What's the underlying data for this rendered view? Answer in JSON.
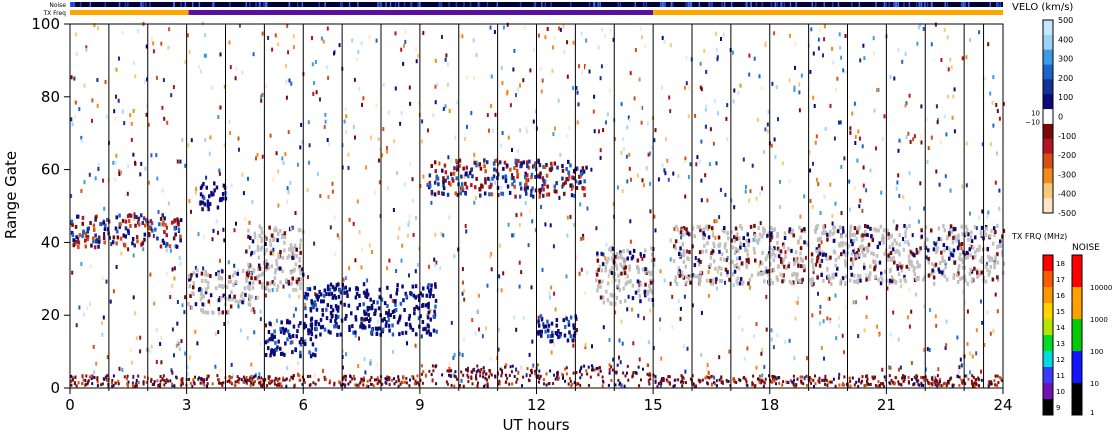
{
  "chart_data": {
    "type": "heatmap",
    "xlabel": "UT hours",
    "ylabel": "Range Gate",
    "xlim": [
      0,
      24
    ],
    "ylim": [
      0,
      100
    ],
    "xticks": [
      0,
      3,
      6,
      9,
      12,
      15,
      18,
      21,
      24
    ],
    "yticks": [
      0,
      20,
      40,
      60,
      80,
      100
    ],
    "scan_boundaries_hours": [
      1.0,
      2.0,
      3.0,
      4.0,
      5.0,
      6.0,
      7.0,
      8.0,
      9.0,
      10.0,
      11.0,
      12.0,
      13.0,
      14.0,
      15.0,
      16.0,
      17.0,
      18.0,
      19.0,
      20.0,
      21.0,
      22.0,
      23.0,
      23.5
    ],
    "top_bars": {
      "noise_label": "Noise",
      "txfreq_label": "TX Freq",
      "tx_freq_segments": [
        {
          "start": 0,
          "end": 3.05,
          "color": "#ffa500"
        },
        {
          "start": 3.05,
          "end": 15.0,
          "color": "#5b0f9e"
        },
        {
          "start": 15.0,
          "end": 24,
          "color": "#ffa500"
        }
      ]
    },
    "features": [
      {
        "name": "backscatter",
        "x": [
          0.0,
          2.9
        ],
        "y": [
          38,
          47
        ],
        "kind": "mixed"
      },
      {
        "name": "backscatter",
        "x": [
          3.0,
          4.7
        ],
        "y": [
          20,
          32
        ],
        "kind": "ground"
      },
      {
        "name": "backscatter",
        "x": [
          3.3,
          4.0
        ],
        "y": [
          48,
          56
        ],
        "kind": "neg"
      },
      {
        "name": "backscatter",
        "x": [
          4.5,
          6.0
        ],
        "y": [
          26,
          44
        ],
        "kind": "ground"
      },
      {
        "name": "backscatter",
        "x": [
          5.0,
          6.3
        ],
        "y": [
          8,
          18
        ],
        "kind": "neg"
      },
      {
        "name": "backscatter",
        "x": [
          6.0,
          9.4
        ],
        "y": [
          14,
          28
        ],
        "kind": "neg"
      },
      {
        "name": "backscatter",
        "x": [
          9.2,
          13.3
        ],
        "y": [
          52,
          62
        ],
        "kind": "mixed"
      },
      {
        "name": "backscatter",
        "x": [
          12.0,
          13.0
        ],
        "y": [
          12,
          20
        ],
        "kind": "neg"
      },
      {
        "name": "backscatter",
        "x": [
          13.5,
          15.0
        ],
        "y": [
          22,
          38
        ],
        "kind": "ground"
      },
      {
        "name": "backscatter",
        "x": [
          15.5,
          24.0
        ],
        "y": [
          28,
          44
        ],
        "kind": "ground"
      }
    ],
    "velocity_colorbar": {
      "title": "VELO (km/s)",
      "ticks": [
        500,
        400,
        300,
        200,
        100,
        0,
        -100,
        -200,
        -300,
        -400,
        -500
      ],
      "small_labels": [
        "10",
        "−10"
      ],
      "colors_top_to_bottom": [
        "#c8e6ff",
        "#9cd2fa",
        "#3c9be6",
        "#1e64c8",
        "#143296",
        "#0a0a78",
        "#ffffff",
        "#780a0a",
        "#b4141e",
        "#d25014",
        "#f08c1e",
        "#fac878",
        "#ffe6c8"
      ]
    },
    "txfreq_colorbar": {
      "title": "TX FRQ (MHz)",
      "ticks": [
        18,
        17,
        16,
        15,
        14,
        13,
        12,
        11,
        10,
        9
      ],
      "colors_top_to_bottom": [
        "#ff0000",
        "#ff5a00",
        "#ff9600",
        "#ffd200",
        "#b4e600",
        "#00dc28",
        "#00dcdc",
        "#3c3cff",
        "#6e14b4",
        "#000000"
      ]
    },
    "noise_colorbar": {
      "title": "NOISE",
      "ticks": [
        "10000",
        "1000",
        "100",
        "10",
        "1"
      ],
      "colors_top_to_bottom": [
        "#ff0000",
        "#ffa000",
        "#00cc00",
        "#1414ff",
        "#000000"
      ]
    }
  }
}
